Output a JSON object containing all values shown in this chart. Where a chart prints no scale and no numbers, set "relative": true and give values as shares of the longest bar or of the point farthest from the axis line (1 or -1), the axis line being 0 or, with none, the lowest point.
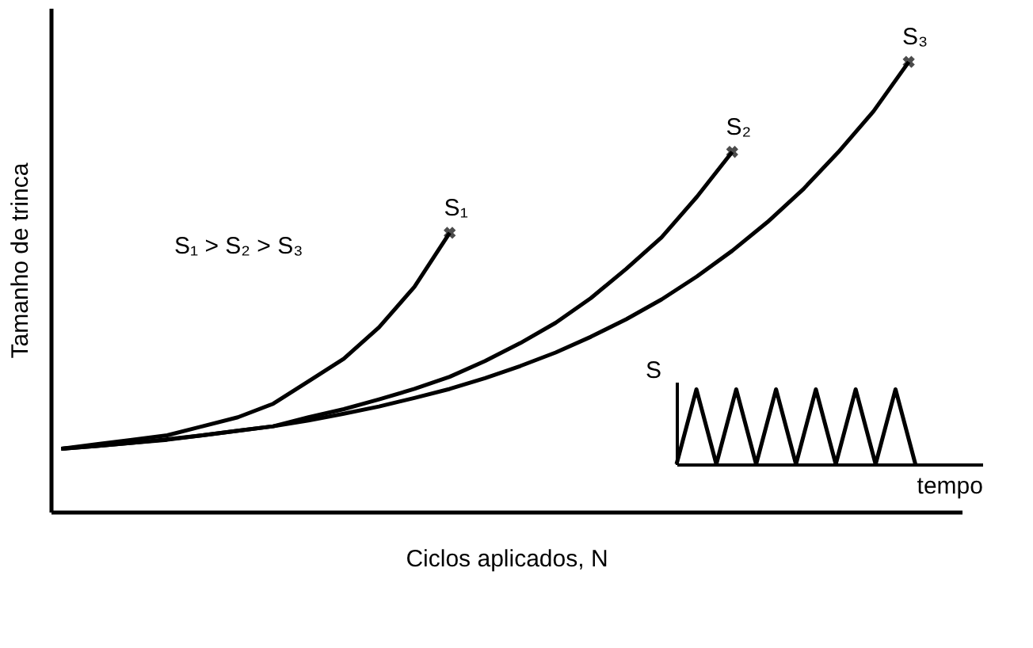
{
  "chart_data": [
    {
      "type": "line",
      "relative": true,
      "xlabel": "Ciclos aplicados,  N",
      "ylabel": "Tamanho de trinca",
      "annotations": [
        "S₁ > S₂ > S₃"
      ],
      "legend": false,
      "grid": false,
      "line_style": "solid",
      "categories": [
        null,
        null,
        null,
        null,
        null,
        null,
        null,
        null,
        null,
        null,
        null,
        null,
        null,
        null,
        null,
        null,
        null,
        null,
        null,
        null,
        null,
        null,
        null,
        null,
        null
      ],
      "series": [
        {
          "name": "S₁",
          "color": "#000000",
          "values": [
            0.14,
            0.15,
            0.16,
            0.17,
            0.19,
            0.21,
            0.24,
            0.29,
            0.34,
            0.41,
            0.5,
            0.62,
            null,
            null,
            null,
            null,
            null,
            null,
            null,
            null,
            null,
            null,
            null,
            null,
            null
          ]
        },
        {
          "name": "S₂",
          "color": "#000000",
          "values": [
            0.14,
            0.146,
            0.153,
            0.161,
            0.17,
            0.18,
            0.19,
            0.21,
            0.228,
            0.25,
            0.273,
            0.3,
            0.335,
            0.375,
            0.42,
            0.475,
            0.54,
            0.61,
            0.7,
            0.8,
            null,
            null,
            null,
            null,
            null
          ]
        },
        {
          "name": "S₃",
          "color": "#000000",
          "values": [
            0.14,
            0.146,
            0.153,
            0.16,
            0.17,
            0.18,
            0.19,
            0.203,
            0.218,
            0.234,
            0.253,
            0.273,
            0.297,
            0.324,
            0.354,
            0.389,
            0.428,
            0.472,
            0.523,
            0.58,
            0.644,
            0.716,
            0.799,
            0.89,
            1.0
          ]
        }
      ]
    },
    {
      "type": "line",
      "relative": true,
      "xlabel": "tempo",
      "ylabel": "S",
      "legend": false,
      "line_style": "solid",
      "categories": [
        null,
        null,
        null,
        null,
        null,
        null,
        null,
        null,
        null,
        null,
        null,
        null,
        null
      ],
      "series": [
        {
          "color": "#000000",
          "values": [
            0,
            1,
            0,
            1,
            0,
            1,
            0,
            1,
            0,
            1,
            0,
            1,
            0
          ]
        }
      ]
    }
  ]
}
